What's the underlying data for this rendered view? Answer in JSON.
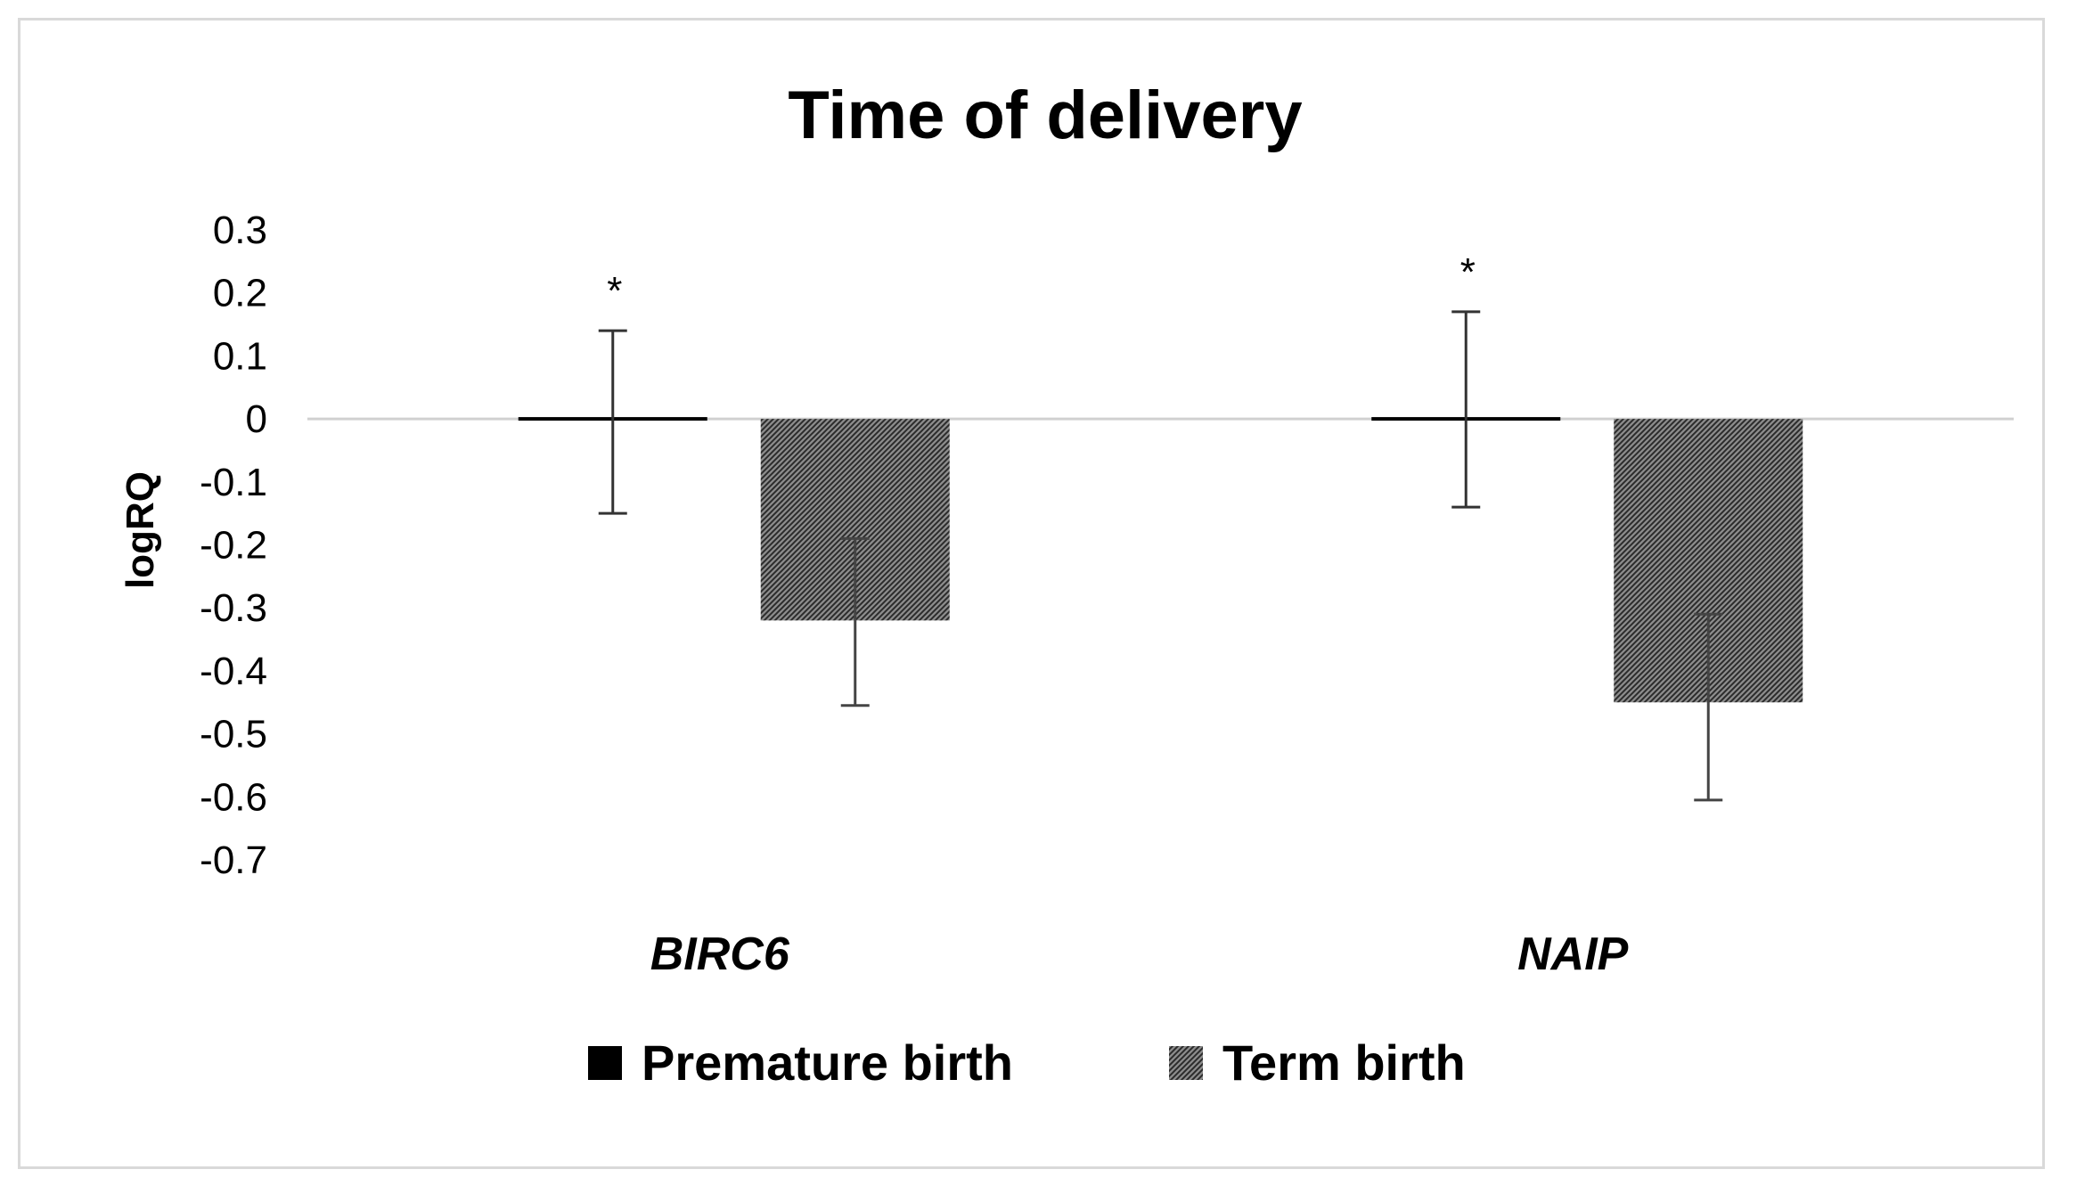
{
  "chart_data": {
    "type": "bar",
    "title": "Time of delivery",
    "xlabel": "",
    "ylabel": "logRQ",
    "ylim": [
      -0.7,
      0.3
    ],
    "yticks": [
      "0.3",
      "0.2",
      "0.1",
      "0",
      "-0.1",
      "-0.2",
      "-0.3",
      "-0.4",
      "-0.5",
      "-0.6",
      "-0.7"
    ],
    "categories": [
      "BIRC6",
      "NAIP"
    ],
    "series": [
      {
        "name": "Premature birth",
        "values": [
          -0.005,
          0.005
        ],
        "err_upper": [
          0.145,
          0.165
        ],
        "err_lower": [
          0.145,
          0.145
        ],
        "fill": "solid",
        "color": "#000000"
      },
      {
        "name": "Term birth",
        "values": [
          -0.32,
          -0.45
        ],
        "err_upper": [
          0.13,
          0.14
        ],
        "err_lower": [
          0.135,
          0.155
        ],
        "fill": "hatched",
        "color": "#595959"
      }
    ],
    "annotations": [
      {
        "category": "BIRC6",
        "series": "Premature birth",
        "text": "*"
      },
      {
        "category": "NAIP",
        "series": "Premature birth",
        "text": "*"
      }
    ],
    "legend_position": "bottom",
    "grid": false
  }
}
